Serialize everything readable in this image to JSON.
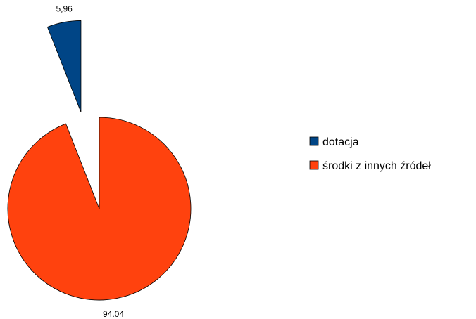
{
  "chart_data": {
    "type": "pie",
    "categories": [
      "dotacja",
      "środki z innych źródeł"
    ],
    "values": [
      5.96,
      94.04
    ],
    "data_labels": [
      "5,96",
      "94.04"
    ],
    "colors": [
      "#004586",
      "#ff420e"
    ],
    "exploded": [
      true,
      false
    ],
    "legend": {
      "position": "right",
      "entries": [
        "dotacja",
        "środki z innych źródeł"
      ]
    }
  }
}
